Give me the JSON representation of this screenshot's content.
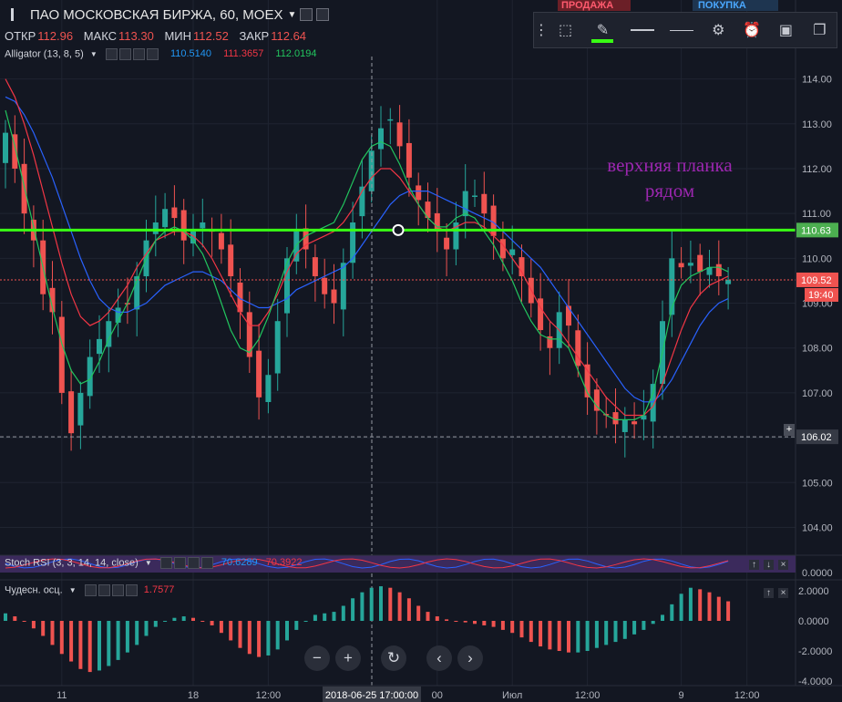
{
  "header": {
    "symbol": "ПАО МОСКОВСКАЯ БИРЖА, 60, MOEX",
    "ohlc": [
      {
        "label": "ОТКР",
        "value": "112.96"
      },
      {
        "label": "МАКС",
        "value": "113.30"
      },
      {
        "label": "МИН",
        "value": "112.52"
      },
      {
        "label": "ЗАКР",
        "value": "112.64"
      }
    ]
  },
  "indicators": {
    "alligator": {
      "label": "Alligator (13, 8, 5)",
      "jaw": "110.5140",
      "teeth": "111.3657",
      "lips": "112.0194"
    },
    "stoch_rsi": {
      "label": "Stoch RSI (3, 3, 14, 14, close)",
      "k": "70.6289",
      "d": "70.3922"
    },
    "ao": {
      "label": "Чудесн. осц.",
      "value": "1.7577"
    }
  },
  "trade": {
    "sell": "ПРОДАЖА",
    "buy": "ПОКУПКА"
  },
  "annotation": {
    "line1": "верхняя планка",
    "line2": "рядом"
  },
  "price_labels": {
    "resistance": "110.63",
    "current": "109.52",
    "countdown": "19:40",
    "crosshair_price": "106.02"
  },
  "crosshair_time": "2018-06-25 17:00:00",
  "colors": {
    "up": "#26a69a",
    "down": "#ef5350",
    "resistance": "#39ff14",
    "jaw": "#2962ff",
    "teeth": "#f23645",
    "lips": "#22c55e",
    "annotation": "#9c27b0"
  },
  "toolbar_icons": [
    "drag-handle-icon",
    "select-rect-icon",
    "pencil-icon",
    "line-thick-icon",
    "line-thin-icon",
    "gear-icon",
    "alert-icon",
    "template-icon",
    "copy-icon"
  ],
  "nav": {
    "zoom_out": "−",
    "zoom_in": "+",
    "reset": "↻",
    "prev": "‹",
    "next": "›"
  },
  "chart_data": {
    "type": "candlestick",
    "y_ticks": [
      "114.00",
      "113.00",
      "112.00",
      "111.00",
      "110.00",
      "109.00",
      "108.00",
      "107.00",
      "106.00",
      "105.00",
      "104.00"
    ],
    "ylim": [
      103.4,
      114.5
    ],
    "x_ticks": [
      {
        "i": 6,
        "label": "11"
      },
      {
        "i": 20,
        "label": "18"
      },
      {
        "i": 28,
        "label": "12:00"
      },
      {
        "i": 46,
        "label": "00"
      },
      {
        "i": 54,
        "label": "Июл"
      },
      {
        "i": 62,
        "label": "12:00"
      },
      {
        "i": 72,
        "label": "9"
      },
      {
        "i": 79,
        "label": "12:00"
      }
    ],
    "ao_ticks": [
      "2.0000",
      "0.0000",
      "-2.0000",
      "-4.0000"
    ],
    "stoch_ticks": [
      "0.0000"
    ],
    "resistance": 110.63,
    "current_price": 109.52,
    "crosshair_price": 106.02,
    "closes": [
      112.8,
      112.0,
      111.0,
      110.4,
      109.2,
      108.8,
      107.0,
      106.1,
      107.0,
      107.8,
      108.2,
      108.6,
      108.9,
      109.0,
      109.6,
      110.4,
      110.8,
      111.1,
      110.9,
      110.4,
      110.6,
      110.8,
      110.6,
      110.2,
      109.6,
      108.8,
      107.8,
      106.9,
      107.4,
      108.6,
      110.0,
      110.6,
      110.2,
      109.6,
      109.2,
      109.0,
      109.9,
      110.8,
      111.6,
      112.4,
      112.9,
      113.1,
      112.5,
      111.8,
      111.3,
      110.9,
      110.6,
      110.2,
      110.8,
      111.5,
      111.4,
      111.0,
      110.5,
      110.0,
      110.2,
      109.6,
      109.0,
      108.4,
      108.0,
      108.8,
      108.5,
      107.6,
      106.9,
      106.6,
      106.5,
      106.3,
      106.4,
      106.3,
      106.5,
      107.2,
      108.6,
      110.0,
      109.8,
      109.9,
      109.7,
      109.8,
      109.6,
      109.52
    ],
    "jaw": [
      113.6,
      113.5,
      113.2,
      112.8,
      112.3,
      111.8,
      111.2,
      110.6,
      110.0,
      109.5,
      109.1,
      108.9,
      108.8,
      108.8,
      108.9,
      109.0,
      109.2,
      109.4,
      109.5,
      109.6,
      109.7,
      109.7,
      109.6,
      109.5,
      109.3,
      109.1,
      109.0,
      108.9,
      108.9,
      109.0,
      109.1,
      109.3,
      109.4,
      109.5,
      109.6,
      109.7,
      109.8,
      110.0,
      110.3,
      110.6,
      110.9,
      111.2,
      111.4,
      111.5,
      111.5,
      111.5,
      111.4,
      111.3,
      111.2,
      111.1,
      111.0,
      110.9,
      110.8,
      110.6,
      110.4,
      110.2,
      110.0,
      109.8,
      109.5,
      109.2,
      108.9,
      108.6,
      108.3,
      108.0,
      107.7,
      107.4,
      107.1,
      106.9,
      106.8,
      106.8,
      107.0,
      107.3,
      107.7,
      108.1,
      108.5,
      108.8,
      109.0,
      109.1
    ],
    "teeth": [
      114.0,
      113.6,
      113.0,
      112.3,
      111.5,
      110.7,
      109.9,
      109.2,
      108.7,
      108.5,
      108.6,
      108.8,
      109.1,
      109.4,
      109.8,
      110.1,
      110.4,
      110.5,
      110.6,
      110.6,
      110.5,
      110.3,
      110.0,
      109.6,
      109.2,
      108.8,
      108.5,
      108.5,
      108.8,
      109.2,
      109.7,
      110.1,
      110.3,
      110.4,
      110.5,
      110.6,
      110.8,
      111.1,
      111.5,
      111.8,
      112.0,
      112.0,
      111.8,
      111.5,
      111.2,
      110.9,
      110.7,
      110.6,
      110.7,
      110.8,
      110.8,
      110.7,
      110.5,
      110.3,
      110.0,
      109.7,
      109.3,
      108.9,
      108.6,
      108.4,
      108.1,
      107.8,
      107.5,
      107.2,
      106.9,
      106.7,
      106.5,
      106.5,
      106.5,
      106.7,
      107.2,
      107.8,
      108.4,
      108.9,
      109.2,
      109.4,
      109.5,
      109.6
    ],
    "lips": [
      113.3,
      112.5,
      111.6,
      110.7,
      109.8,
      108.9,
      108.1,
      107.5,
      107.2,
      107.3,
      107.7,
      108.2,
      108.6,
      109.0,
      109.5,
      110.0,
      110.4,
      110.6,
      110.7,
      110.6,
      110.4,
      110.1,
      109.6,
      109.0,
      108.4,
      108.0,
      107.9,
      108.2,
      108.7,
      109.3,
      109.9,
      110.3,
      110.5,
      110.6,
      110.7,
      110.8,
      111.2,
      111.7,
      112.2,
      112.5,
      112.6,
      112.5,
      112.1,
      111.6,
      111.2,
      110.9,
      110.7,
      110.7,
      110.9,
      111.0,
      110.9,
      110.6,
      110.3,
      109.9,
      109.5,
      109.0,
      108.6,
      108.3,
      108.2,
      108.2,
      108.0,
      107.5,
      107.0,
      106.7,
      106.5,
      106.4,
      106.4,
      106.4,
      106.5,
      107.0,
      107.9,
      108.9,
      109.4,
      109.6,
      109.7,
      109.8,
      109.8,
      109.7
    ],
    "ao": [
      0.5,
      0.3,
      0.0,
      -0.5,
      -1.0,
      -1.6,
      -2.2,
      -2.7,
      -3.2,
      -3.4,
      -3.3,
      -3.0,
      -2.6,
      -2.1,
      -1.6,
      -1.0,
      -0.4,
      0.0,
      0.2,
      0.3,
      0.2,
      0.0,
      -0.3,
      -0.8,
      -1.3,
      -1.8,
      -2.2,
      -2.4,
      -2.3,
      -1.9,
      -1.3,
      -0.6,
      0.0,
      0.4,
      0.5,
      0.6,
      1.0,
      1.5,
      1.9,
      2.2,
      2.3,
      2.2,
      1.9,
      1.5,
      1.0,
      0.6,
      0.3,
      0.1,
      0.0,
      -0.1,
      -0.2,
      -0.3,
      -0.4,
      -0.6,
      -0.8,
      -1.1,
      -1.4,
      -1.7,
      -1.9,
      -2.0,
      -2.1,
      -2.1,
      -2.0,
      -1.8,
      -1.6,
      -1.4,
      -1.2,
      -0.9,
      -0.6,
      -0.2,
      0.4,
      1.1,
      1.8,
      2.2,
      2.1,
      1.9,
      1.6,
      1.3
    ]
  }
}
